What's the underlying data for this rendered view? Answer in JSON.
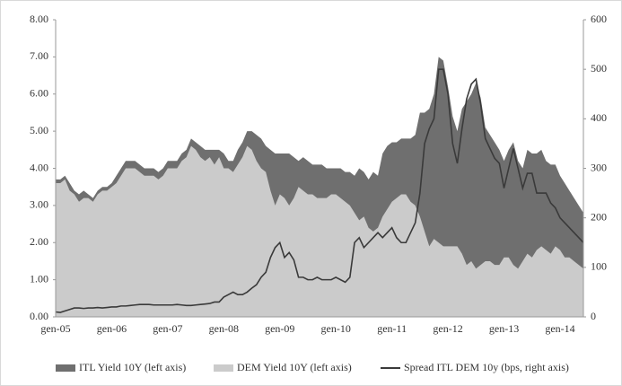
{
  "chart_data": {
    "type": "area",
    "categories": [
      "gen-05",
      null,
      null,
      null,
      null,
      null,
      null,
      null,
      null,
      null,
      null,
      null,
      "gen-06",
      null,
      null,
      null,
      null,
      null,
      null,
      null,
      null,
      null,
      null,
      null,
      "gen-07",
      null,
      null,
      null,
      null,
      null,
      null,
      null,
      null,
      null,
      null,
      null,
      "gen-08",
      null,
      null,
      null,
      null,
      null,
      null,
      null,
      null,
      null,
      null,
      null,
      "gen-09",
      null,
      null,
      null,
      null,
      null,
      null,
      null,
      null,
      null,
      null,
      null,
      "gen-10",
      null,
      null,
      null,
      null,
      null,
      null,
      null,
      null,
      null,
      null,
      null,
      "gen-11",
      null,
      null,
      null,
      null,
      null,
      null,
      null,
      null,
      null,
      null,
      null,
      "gen-12",
      null,
      null,
      null,
      null,
      null,
      null,
      null,
      null,
      null,
      null,
      null,
      "gen-13",
      null,
      null,
      null,
      null,
      null,
      null,
      null,
      null,
      null,
      null,
      null,
      "gen-14",
      null,
      null,
      null,
      null,
      null
    ],
    "series": [
      {
        "name": "ITL Yield 10Y (left axis)",
        "type": "area",
        "color": "#6f6f6f",
        "values": [
          3.7,
          3.7,
          3.8,
          3.6,
          3.4,
          3.3,
          3.4,
          3.3,
          3.2,
          3.4,
          3.5,
          3.5,
          3.6,
          3.8,
          4.0,
          4.2,
          4.2,
          4.2,
          4.1,
          4.0,
          4.0,
          4.0,
          3.9,
          4.0,
          4.2,
          4.2,
          4.2,
          4.4,
          4.5,
          4.8,
          4.7,
          4.6,
          4.5,
          4.5,
          4.5,
          4.5,
          4.4,
          4.2,
          4.2,
          4.5,
          4.7,
          5.0,
          5.0,
          4.9,
          4.8,
          4.6,
          4.5,
          4.4,
          4.4,
          4.4,
          4.4,
          4.3,
          4.2,
          4.3,
          4.2,
          4.1,
          4.1,
          4.1,
          4.0,
          4.0,
          4.0,
          4.0,
          3.9,
          3.9,
          3.8,
          4.0,
          3.9,
          3.7,
          3.9,
          3.8,
          4.4,
          4.6,
          4.7,
          4.7,
          4.8,
          4.8,
          4.8,
          4.9,
          5.5,
          5.5,
          5.6,
          6.0,
          7.0,
          6.9,
          6.2,
          5.4,
          5.0,
          5.6,
          5.8,
          6.0,
          6.3,
          5.9,
          5.1,
          4.9,
          4.7,
          4.5,
          4.2,
          4.5,
          4.7,
          4.2,
          4.0,
          4.5,
          4.4,
          4.4,
          4.5,
          4.2,
          4.1,
          4.1,
          3.8,
          3.6,
          3.4,
          3.2,
          3.0,
          2.8
        ]
      },
      {
        "name": "DEM Yield 10Y (left axis)",
        "type": "area",
        "color": "#cbcbcb",
        "values": [
          3.6,
          3.6,
          3.7,
          3.4,
          3.3,
          3.1,
          3.2,
          3.2,
          3.1,
          3.3,
          3.4,
          3.4,
          3.5,
          3.6,
          3.8,
          4.0,
          4.0,
          4.0,
          3.9,
          3.8,
          3.8,
          3.8,
          3.7,
          3.8,
          4.0,
          4.0,
          4.0,
          4.2,
          4.3,
          4.6,
          4.5,
          4.3,
          4.2,
          4.3,
          4.1,
          4.3,
          4.0,
          4.0,
          3.9,
          4.1,
          4.3,
          4.6,
          4.5,
          4.2,
          4.0,
          3.9,
          3.4,
          3.0,
          3.3,
          3.2,
          3.0,
          3.2,
          3.5,
          3.4,
          3.3,
          3.3,
          3.2,
          3.2,
          3.2,
          3.3,
          3.3,
          3.2,
          3.1,
          3.0,
          2.8,
          2.6,
          2.7,
          2.4,
          2.3,
          2.4,
          2.7,
          2.9,
          3.1,
          3.2,
          3.3,
          3.3,
          3.1,
          3.0,
          2.7,
          2.3,
          1.9,
          2.1,
          2.0,
          1.9,
          1.9,
          1.9,
          1.9,
          1.7,
          1.4,
          1.5,
          1.3,
          1.4,
          1.5,
          1.5,
          1.4,
          1.4,
          1.6,
          1.6,
          1.4,
          1.3,
          1.5,
          1.7,
          1.6,
          1.8,
          1.9,
          1.8,
          1.7,
          1.9,
          1.8,
          1.6,
          1.6,
          1.5,
          1.4,
          1.3
        ]
      },
      {
        "name": "Spread ITL DEM 10y (bps, right axis)",
        "type": "line",
        "axis": "y2",
        "color": "#3a3a3a",
        "values": [
          10,
          9,
          12,
          15,
          18,
          18,
          17,
          18,
          18,
          19,
          18,
          19,
          20,
          20,
          22,
          22,
          23,
          24,
          25,
          25,
          25,
          24,
          24,
          24,
          24,
          24,
          25,
          24,
          23,
          23,
          24,
          25,
          26,
          27,
          30,
          30,
          40,
          45,
          50,
          45,
          45,
          50,
          58,
          65,
          80,
          90,
          120,
          140,
          150,
          120,
          130,
          115,
          80,
          80,
          75,
          75,
          80,
          75,
          75,
          75,
          80,
          75,
          70,
          80,
          150,
          160,
          140,
          150,
          160,
          170,
          160,
          170,
          180,
          160,
          150,
          150,
          170,
          190,
          250,
          350,
          380,
          400,
          500,
          500,
          450,
          350,
          310,
          380,
          440,
          470,
          480,
          430,
          360,
          340,
          320,
          310,
          260,
          300,
          340,
          300,
          260,
          290,
          290,
          250,
          250,
          250,
          230,
          220,
          200,
          190,
          180,
          170,
          160,
          150
        ]
      }
    ],
    "ylim": [
      0,
      8
    ],
    "yticks": [
      {
        "value": 0,
        "label": "0.00"
      },
      {
        "value": 1,
        "label": "1.00"
      },
      {
        "value": 2,
        "label": "2.00"
      },
      {
        "value": 3,
        "label": "3.00"
      },
      {
        "value": 4,
        "label": "4.00"
      },
      {
        "value": 5,
        "label": "5.00"
      },
      {
        "value": 6,
        "label": "6.00"
      },
      {
        "value": 7,
        "label": "7.00"
      },
      {
        "value": 8,
        "label": "8.00"
      }
    ],
    "y2lim": [
      0,
      600
    ],
    "y2ticks": [
      0,
      100,
      200,
      300,
      400,
      500,
      600
    ],
    "legend": "bottom"
  }
}
